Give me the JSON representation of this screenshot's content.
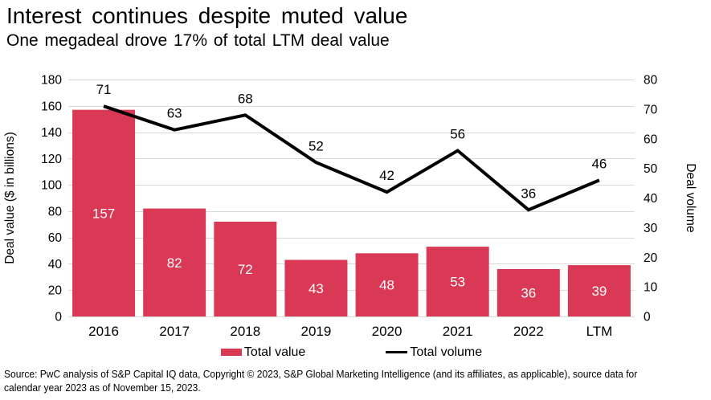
{
  "header": {
    "title": "Interest continues despite muted value",
    "subtitle": "One megadeal drove 17% of total LTM deal value"
  },
  "chart_data": {
    "type": "bar",
    "title": "Interest continues despite muted value",
    "subtitle": "One megadeal drove 17% of total LTM deal value",
    "categories": [
      "2016",
      "2017",
      "2018",
      "2019",
      "2020",
      "2021",
      "2022",
      "LTM"
    ],
    "series": [
      {
        "name": "Total value",
        "type": "bar",
        "axis": "left",
        "color": "#D93954",
        "label_color": "#ffffff",
        "values": [
          157,
          82,
          72,
          43,
          48,
          53,
          36,
          39
        ]
      },
      {
        "name": "Total volume",
        "type": "line",
        "axis": "right",
        "color": "#000000",
        "label_color": "#000000",
        "values": [
          71,
          63,
          68,
          52,
          42,
          56,
          36,
          46
        ]
      }
    ],
    "left_axis": {
      "label": "Deal value ($ in billions)",
      "min": 0,
      "max": 180,
      "step": 20
    },
    "right_axis": {
      "label": "Deal volume",
      "min": 0,
      "max": 80,
      "step": 10
    },
    "grid": true,
    "gridline_color": "#d9d9d9",
    "legend_position": "bottom"
  },
  "footer": {
    "lines": [
      "Source: PwC analysis of S&P Capital IQ data, Copyright © 2023, S&P Global Marketing Intelligence (and its affiliates, as applicable), source data for",
      "calendar year 2023 as of November 15, 2023."
    ]
  }
}
